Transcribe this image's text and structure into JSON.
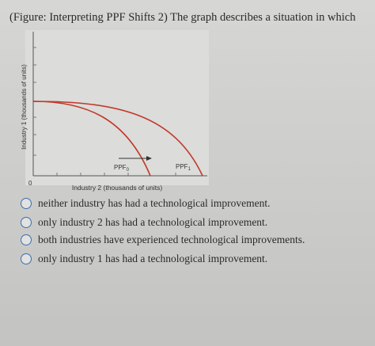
{
  "question": {
    "text": "(Figure: Interpreting PPF Shifts 2) The graph describes a situation in which"
  },
  "graph": {
    "y_axis_label": "Industry 1 (thousands of units)",
    "x_axis_label": "Industry 2 (thousands of units)",
    "origin": "0",
    "curves": [
      {
        "label": "PPF",
        "sub": "0"
      },
      {
        "label": "PPF",
        "sub": "1"
      }
    ]
  },
  "options": [
    "neither industry has had a technological improvement.",
    "only industry 2 has had a technological improvement.",
    "both industries have experienced technological improvements.",
    "only industry 1 has had a technological improvement."
  ]
}
